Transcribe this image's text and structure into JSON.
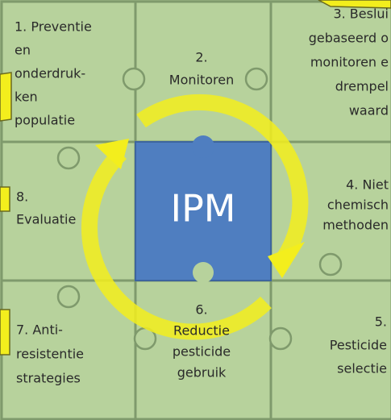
{
  "tiles": [
    {
      "lines": [
        "1. Preventie",
        "en",
        "onderdruk-",
        "ken",
        "populatie"
      ]
    },
    {
      "lines": [
        "2.",
        "Monitoren"
      ]
    },
    {
      "lines": [
        "3. Beslui",
        "gebaseerd o",
        "monitoren e",
        "drempel",
        "waard"
      ]
    },
    {
      "lines": [
        "4. Niet",
        "chemisch",
        "methoden"
      ]
    },
    {
      "lines": [
        "5.",
        "Pesticide",
        "selectie"
      ]
    },
    {
      "lines": [
        "6.",
        "Reductie",
        "pesticide",
        "gebruik"
      ]
    },
    {
      "lines": [
        "7.  Anti-",
        "resistentie",
        "strategies"
      ]
    },
    {
      "lines": [
        "8.",
        "Evaluatie"
      ]
    }
  ],
  "center": {
    "label": "IPM"
  }
}
